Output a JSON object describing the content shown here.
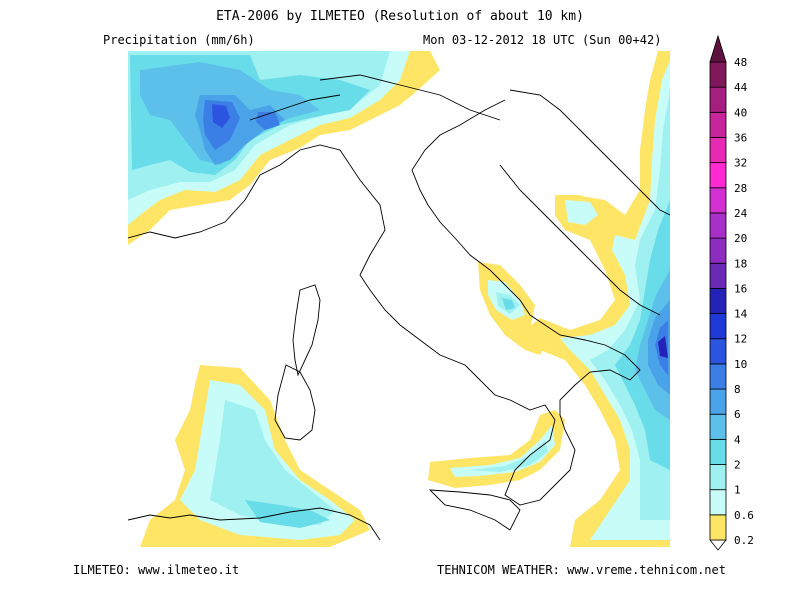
{
  "header": {
    "title": "ETA-2006 by ILMETEO (Resolution of about 10 km)",
    "variable": "Precipitation (mm/6h)",
    "valid_time": "Mon 03-12-2012 18 UTC (Sun 00+42)"
  },
  "footer": {
    "left": "ILMETEO: www.ilmeteo.it",
    "right": "TEHNICOM WEATHER: www.vreme.tehnicom.net"
  },
  "legend": {
    "levels": [
      "0.2",
      "0.6",
      "1",
      "2",
      "4",
      "6",
      "8",
      "10",
      "12",
      "14",
      "16",
      "18",
      "20",
      "24",
      "28",
      "32",
      "36",
      "40",
      "44",
      "48"
    ],
    "colors": [
      "#ffffff",
      "#ffe566",
      "#c8fcf8",
      "#9ff0f0",
      "#68dce8",
      "#5cc0ea",
      "#4aa3e8",
      "#3a7ee6",
      "#2b55e0",
      "#1e3ad6",
      "#2323b8",
      "#6a2ab8",
      "#8c2cc0",
      "#a830c8",
      "#d230d2",
      "#ff2ad2",
      "#e62ab4",
      "#c8249c",
      "#a61e80",
      "#82185c",
      "#5e1240"
    ]
  },
  "colors": {
    "yellow": "#ffe566",
    "pale_cyan": "#c8fcf8",
    "light_cyan": "#9ff0f0",
    "cyan": "#68dce8",
    "sky": "#5cc0ea",
    "blue": "#4aa3e8",
    "mid_blue": "#3a7ee6",
    "deep_blue": "#2b55e0",
    "indigo": "#2323b8",
    "coast": "#000000"
  }
}
